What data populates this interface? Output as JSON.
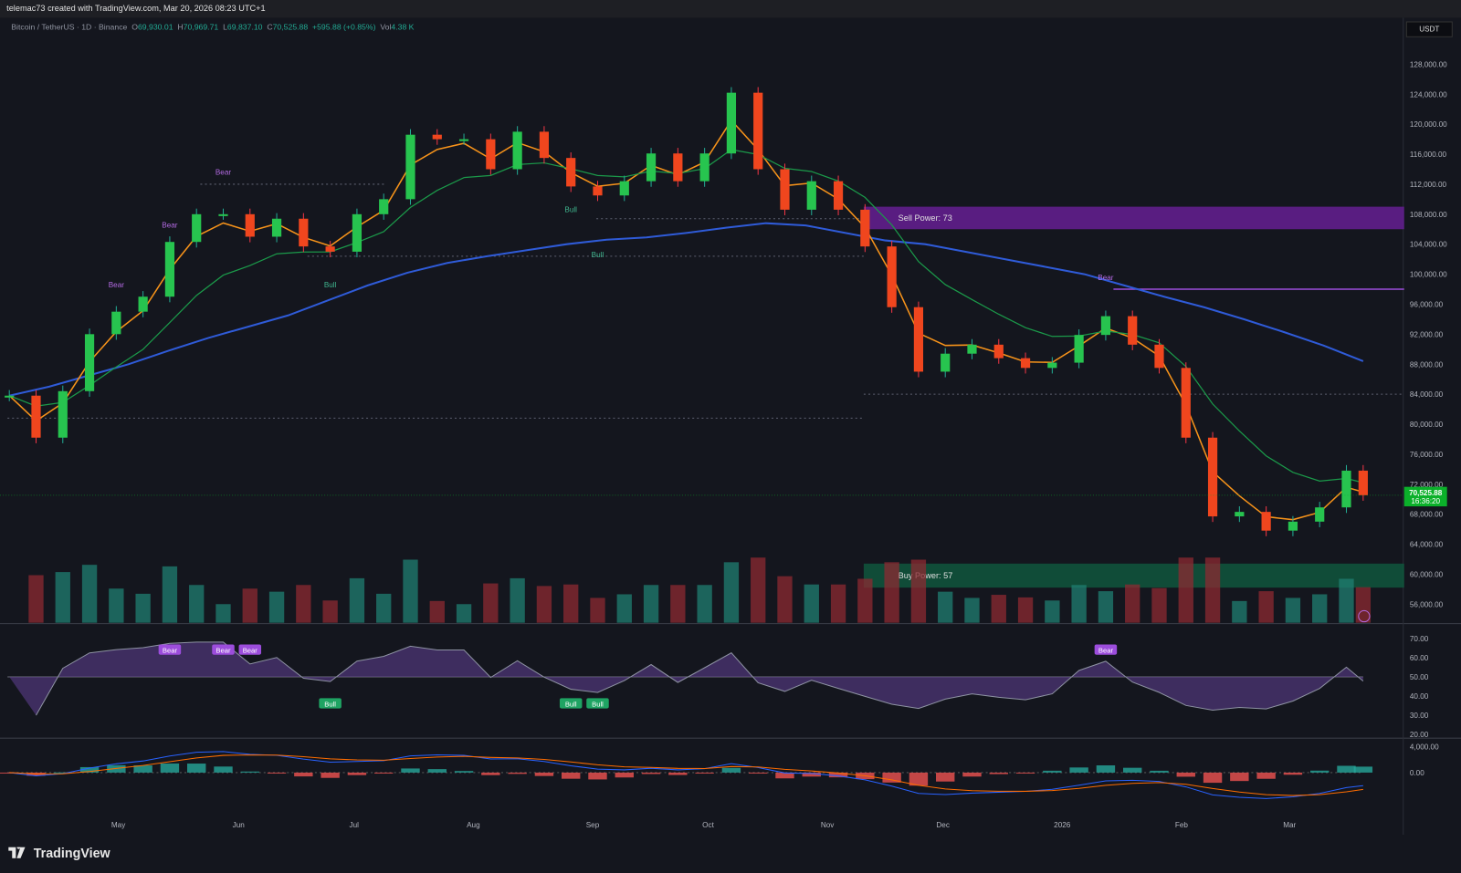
{
  "header": {
    "caption": "telemac73 created with TradingView.com, Mar 20, 2026 08:23 UTC+1"
  },
  "legend": {
    "symbol": "Bitcoin / TetherUS · 1D · Binance",
    "open_label": "O",
    "open": "69,930.01",
    "high_label": "H",
    "high": "70,969.71",
    "low_label": "L",
    "low": "69,837.10",
    "close_label": "C",
    "close": "70,525.88",
    "change": "+595.88 (+0.85%)",
    "vol_label": "Vol",
    "vol": "4.38 K"
  },
  "currency": "USDT",
  "branding": "TradingView",
  "colors": {
    "up": "#22ab94",
    "down": "#f23645",
    "ma200": "#2f5bd8",
    "ema_fast": "#f7931a",
    "ema_mid": "#1b9a4a",
    "sell_zone": "#6a1f9a",
    "buy_zone": "#0f5a3e",
    "price_label": "#0bb02a",
    "osc": "#9c6ade"
  },
  "chart_data": {
    "type": "candlestick",
    "title": "",
    "x": [
      "Apr 1",
      "Apr 8",
      "Apr 15",
      "Apr 22",
      "Apr 29",
      "May 6",
      "May 13",
      "May 20",
      "May 27",
      "Jun 3",
      "Jun 10",
      "Jun 17",
      "Jun 24",
      "Jul 1",
      "Jul 8",
      "Jul 15",
      "Jul 22",
      "Jul 29",
      "Aug 5",
      "Aug 12",
      "Aug 19",
      "Aug 26",
      "Sep 2",
      "Sep 9",
      "Sep 16",
      "Sep 23",
      "Sep 30",
      "Oct 6",
      "Oct 13",
      "Oct 20",
      "Oct 27",
      "Nov 3",
      "Nov 10",
      "Nov 17",
      "Nov 24",
      "Dec 1",
      "Dec 8",
      "Dec 15",
      "Dec 22",
      "Dec 29",
      "Jan 5",
      "Jan 12",
      "Jan 19",
      "Jan 26",
      "Feb 2",
      "Feb 9",
      "Feb 16",
      "Feb 23",
      "Mar 2",
      "Mar 9",
      "Mar 16",
      "Mar 20"
    ],
    "close": [
      83800,
      78200,
      84400,
      92000,
      95000,
      97000,
      104300,
      108000,
      108000,
      105000,
      107400,
      103700,
      103000,
      108000,
      110000,
      118600,
      118000,
      118000,
      114000,
      119000,
      115500,
      111700,
      110500,
      112400,
      116100,
      112400,
      116100,
      124200,
      114000,
      108600,
      112400,
      108600,
      103700,
      95600,
      87000,
      89400,
      90600,
      88800,
      87500,
      88200,
      91900,
      94400,
      90600,
      87500,
      78200,
      67700,
      68300,
      65800,
      67000,
      68900,
      73800,
      70525.88
    ],
    "ma200": [
      83800,
      85000,
      86500,
      88000,
      89800,
      91500,
      93000,
      94500,
      96500,
      98500,
      100200,
      101500,
      102400,
      103200,
      104000,
      104600,
      104900,
      105500,
      106200,
      106800,
      106500,
      105500,
      104500,
      104000,
      103000,
      102000,
      101000,
      100000,
      98500,
      97000,
      95600,
      94000,
      92300,
      90500,
      88400
    ],
    "price_axis": {
      "ylim": [
        54000,
        130000
      ],
      "ticks": [
        "128,000.00",
        "124,000.00",
        "120,000.00",
        "116,000.00",
        "112,000.00",
        "108,000.00",
        "104,000.00",
        "100,000.00",
        "96,000.00",
        "92,000.00",
        "88,000.00",
        "84,000.00",
        "80,000.00",
        "76,000.00",
        "72,000.00",
        "68,000.00",
        "64,000.00",
        "60,000.00",
        "56,000.00"
      ]
    },
    "time_axis": [
      "May",
      "Jun",
      "Jul",
      "Aug",
      "Sep",
      "Oct",
      "Nov",
      "Dec",
      "2026",
      "Feb",
      "Mar"
    ],
    "last_price": "70,525.88",
    "countdown": "16:36:20",
    "zones": [
      {
        "label": "Sell Power: 73",
        "from": 106000,
        "to": 109000,
        "start": "Nov 10"
      },
      {
        "label": "Buy Power: 57",
        "from": 58200,
        "to": 61400,
        "start": "Nov 10"
      }
    ],
    "levels": [
      112000,
      107400,
      102400,
      84000,
      80800,
      98000
    ],
    "signals": [
      {
        "label": "Bear",
        "x": "May 27",
        "price": 112000
      },
      {
        "label": "Bear",
        "x": "May 13",
        "price": 105000
      },
      {
        "label": "Bear",
        "x": "Apr 29",
        "price": 97000
      },
      {
        "label": "Bull",
        "x": "Jun 24",
        "price": 100000
      },
      {
        "label": "Bull",
        "x": "Aug 26",
        "price": 110000
      },
      {
        "label": "Bull",
        "x": "Sep 2",
        "price": 104000
      },
      {
        "label": "Bear",
        "x": "Jan 12",
        "price": 98000
      }
    ],
    "rsi": {
      "axis": [
        "70.00",
        "60.00",
        "50.00",
        "40.00",
        "30.00",
        "20.00"
      ],
      "ylim": [
        20,
        70
      ],
      "labels": [
        {
          "label": "Bear",
          "x": "May 13"
        },
        {
          "label": "Bear",
          "x": "May 27"
        },
        {
          "label": "Bear",
          "x": "Jun 3"
        },
        {
          "label": "Bull",
          "x": "Jun 24"
        },
        {
          "label": "Bull",
          "x": "Aug 26"
        },
        {
          "label": "Bull",
          "x": "Sep 2"
        },
        {
          "label": "Bear",
          "x": "Jan 12"
        }
      ]
    },
    "macd": {
      "axis": [
        "4,000.00",
        "0.00"
      ]
    }
  }
}
